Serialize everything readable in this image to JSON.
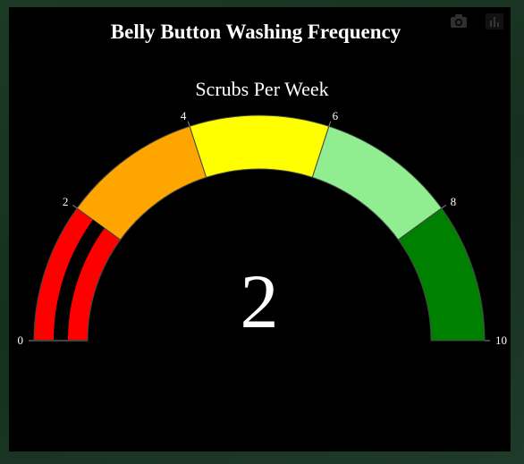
{
  "title": "Belly Button Washing Frequency",
  "chart_data": {
    "type": "gauge",
    "title": "Scrubs Per Week",
    "value": 2,
    "range": [
      0,
      10
    ],
    "tick_labels": [
      "0",
      "2",
      "4",
      "6",
      "8",
      "10"
    ],
    "steps": [
      {
        "range": [
          0,
          2
        ],
        "color": "#ff0000"
      },
      {
        "range": [
          2,
          4
        ],
        "color": "#ffa500"
      },
      {
        "range": [
          4,
          6
        ],
        "color": "#ffff00"
      },
      {
        "range": [
          6,
          8
        ],
        "color": "#90ee90"
      },
      {
        "range": [
          8,
          10
        ],
        "color": "#008000"
      }
    ],
    "bar_color": "#ff0000",
    "background": "#000000",
    "text_color": "#ffffff"
  },
  "toolbar": {
    "icons": [
      "camera-icon",
      "bar-chart-icon"
    ]
  }
}
